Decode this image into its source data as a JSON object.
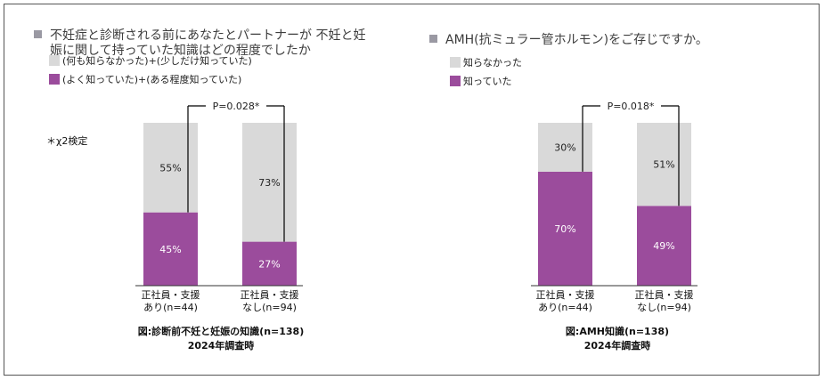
{
  "colors": {
    "gray": "#d9d9d9",
    "purple": "#9b4c9c",
    "title_bullet": "#9a99a3",
    "bracket": "#000000"
  },
  "test_note": "＊χ2検定",
  "chart_data": [
    {
      "type": "bar",
      "stacked": true,
      "title_lines": [
        "不妊症と診断される前にあなたとパートナーが 不妊と妊",
        "娠に関して持っていた知識はどの程度でしたか"
      ],
      "legend": [
        "(何も知らなかった)+(少しだけ知っていた)",
        "(よく知っていた)+(ある程度知っていた)"
      ],
      "categories": [
        [
          "正社員・支援",
          "あり(n=44)"
        ],
        [
          "正社員・支援",
          "なし(n=94)"
        ]
      ],
      "series": [
        {
          "name": "(よく知っていた)+(ある程度知っていた)",
          "values": [
            45,
            27
          ],
          "labels": [
            "45%",
            "27%"
          ]
        },
        {
          "name": "(何も知らなかった)+(少しだけ知っていた)",
          "values": [
            55,
            73
          ],
          "labels": [
            "55%",
            "73%"
          ]
        }
      ],
      "ylim": [
        0,
        100
      ],
      "p_value": "P=0.028*",
      "caption": "図:診断前不妊と妊娠の知識(n=138)",
      "subcaption": "2024年調査時"
    },
    {
      "type": "bar",
      "stacked": true,
      "title_lines": [
        "AMH(抗ミュラー管ホルモン)をご存じですか。"
      ],
      "legend": [
        "知らなかった",
        "知っていた"
      ],
      "categories": [
        [
          "正社員・支援",
          "あり(n=44)"
        ],
        [
          "正社員・支援",
          "なし(n=94)"
        ]
      ],
      "series": [
        {
          "name": "知っていた",
          "values": [
            70,
            49
          ],
          "labels": [
            "70%",
            "49%"
          ]
        },
        {
          "name": "知らなかった",
          "values": [
            30,
            51
          ],
          "labels": [
            "30%",
            "51%"
          ]
        }
      ],
      "ylim": [
        0,
        100
      ],
      "p_value": "P=0.018*",
      "caption": "図:AMH知識(n=138)",
      "subcaption": "2024年調査時"
    }
  ]
}
